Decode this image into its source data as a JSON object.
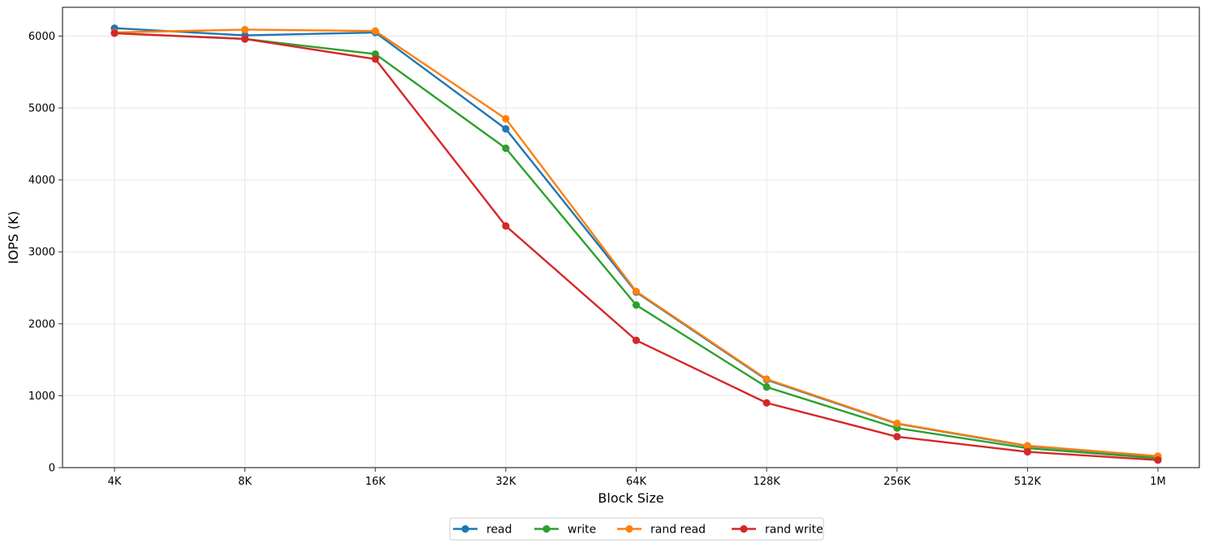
{
  "chart_data": {
    "type": "line",
    "title": "",
    "xlabel": "Block Size",
    "ylabel": "IOPS (K)",
    "categories": [
      "4K",
      "8K",
      "16K",
      "32K",
      "64K",
      "128K",
      "256K",
      "512K",
      "1M"
    ],
    "ylim": [
      0,
      6400
    ],
    "yticks": [
      0,
      1000,
      2000,
      3000,
      4000,
      5000,
      6000
    ],
    "grid": true,
    "legend_position": "bottom-center",
    "series": [
      {
        "name": "read",
        "color": "#1f77b4",
        "values": [
          6110,
          6010,
          6050,
          4710,
          2440,
          1220,
          610,
          300,
          155
        ]
      },
      {
        "name": "write",
        "color": "#2ca02c",
        "values": [
          6040,
          5960,
          5750,
          4440,
          2260,
          1120,
          550,
          270,
          130
        ]
      },
      {
        "name": "rand read",
        "color": "#ff7f0e",
        "values": [
          6050,
          6090,
          6070,
          4850,
          2450,
          1230,
          615,
          305,
          160
        ]
      },
      {
        "name": "rand write",
        "color": "#d62728",
        "values": [
          6040,
          5960,
          5680,
          3360,
          1770,
          900,
          430,
          220,
          105
        ]
      }
    ]
  }
}
